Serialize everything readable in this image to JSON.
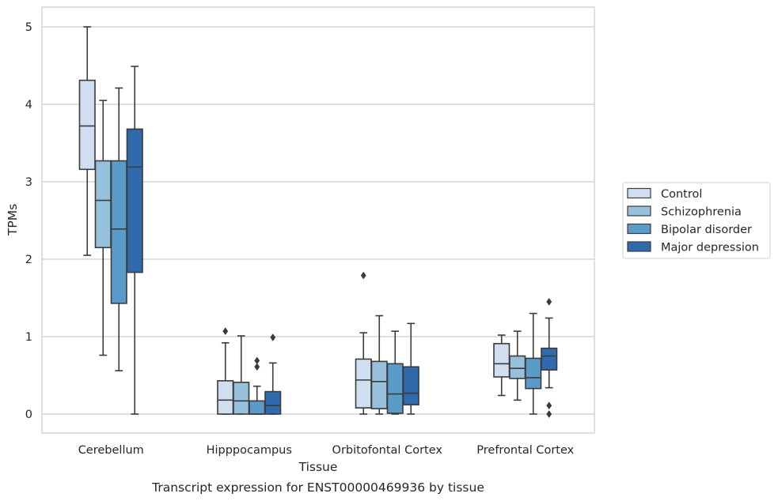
{
  "caption": "Transcript expression for ENST00000469936 by tissue",
  "chart_data": {
    "type": "box",
    "xlabel": "Tissue",
    "ylabel": "TPMs",
    "ylim": [
      -0.24,
      5.25
    ],
    "yticks": [
      0,
      1,
      2,
      3,
      4,
      5
    ],
    "grid": "horizontal",
    "legend_position": "right",
    "categories": [
      "Cerebellum",
      "Hipppocampus",
      "Orbitofontal Cortex",
      "Prefrontal Cortex"
    ],
    "series": [
      {
        "name": "Control",
        "color": "#d0dff0",
        "boxes": [
          {
            "whislo": 2.05,
            "q1": 3.16,
            "med": 3.72,
            "q3": 4.31,
            "whishi": 5.0,
            "fliers": []
          },
          {
            "whislo": 0.0,
            "q1": 0.0,
            "med": 0.18,
            "q3": 0.43,
            "whishi": 0.92,
            "fliers": [
              1.07
            ]
          },
          {
            "whislo": 0.0,
            "q1": 0.08,
            "med": 0.44,
            "q3": 0.71,
            "whishi": 1.05,
            "fliers": [
              1.79
            ]
          },
          {
            "whislo": 0.24,
            "q1": 0.48,
            "med": 0.65,
            "q3": 0.91,
            "whishi": 1.02,
            "fliers": []
          }
        ]
      },
      {
        "name": "Schizophrenia",
        "color": "#97c0dd",
        "boxes": [
          {
            "whislo": 0.76,
            "q1": 2.15,
            "med": 2.76,
            "q3": 3.27,
            "whishi": 4.05,
            "fliers": []
          },
          {
            "whislo": 0.0,
            "q1": 0.0,
            "med": 0.17,
            "q3": 0.41,
            "whishi": 1.01,
            "fliers": []
          },
          {
            "whislo": 0.0,
            "q1": 0.07,
            "med": 0.42,
            "q3": 0.68,
            "whishi": 1.27,
            "fliers": []
          },
          {
            "whislo": 0.18,
            "q1": 0.46,
            "med": 0.59,
            "q3": 0.75,
            "whishi": 1.07,
            "fliers": []
          }
        ]
      },
      {
        "name": "Bipolar disorder",
        "color": "#5b9bc9",
        "boxes": [
          {
            "whislo": 0.56,
            "q1": 1.43,
            "med": 2.39,
            "q3": 3.27,
            "whishi": 4.21,
            "fliers": []
          },
          {
            "whislo": 0.0,
            "q1": 0.0,
            "med": 0.0,
            "q3": 0.17,
            "whishi": 0.36,
            "fliers": [
              0.61,
              0.69
            ]
          },
          {
            "whislo": 0.0,
            "q1": 0.01,
            "med": 0.26,
            "q3": 0.65,
            "whishi": 1.07,
            "fliers": []
          },
          {
            "whislo": 0.0,
            "q1": 0.33,
            "med": 0.47,
            "q3": 0.72,
            "whishi": 1.3,
            "fliers": []
          }
        ]
      },
      {
        "name": "Major depression",
        "color": "#2f6aac",
        "boxes": [
          {
            "whislo": 0.0,
            "q1": 1.83,
            "med": 3.19,
            "q3": 3.68,
            "whishi": 4.49,
            "fliers": []
          },
          {
            "whislo": 0.0,
            "q1": 0.0,
            "med": 0.11,
            "q3": 0.29,
            "whishi": 0.66,
            "fliers": [
              0.99
            ]
          },
          {
            "whislo": 0.0,
            "q1": 0.12,
            "med": 0.27,
            "q3": 0.61,
            "whishi": 1.17,
            "fliers": []
          },
          {
            "whislo": 0.34,
            "q1": 0.57,
            "med": 0.75,
            "q3": 0.85,
            "whishi": 1.24,
            "fliers": [
              0.0,
              0.11,
              1.45
            ]
          }
        ]
      }
    ]
  }
}
